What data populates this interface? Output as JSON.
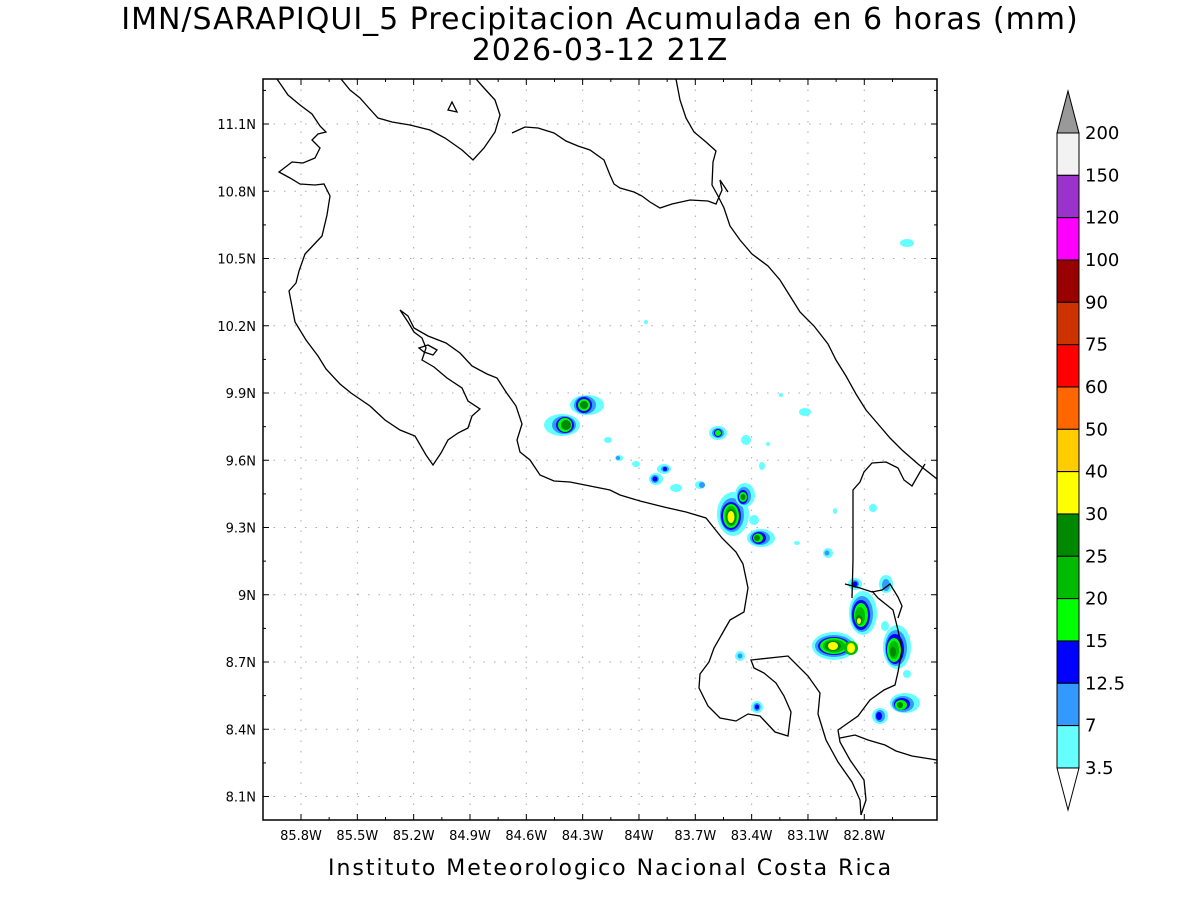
{
  "title": {
    "line1": "IMN/SARAPIQUI_5 Precipitacion Acumulada en 6 horas (mm)",
    "line2": "2026-03-12 21Z"
  },
  "footer": "Instituto Meteorologico Nacional Costa Rica",
  "axes": {
    "lon_labels": [
      "85.8W",
      "85.5W",
      "85.2W",
      "84.9W",
      "84.6W",
      "84.3W",
      "84W",
      "83.7W",
      "83.4W",
      "83.1W",
      "82.8W"
    ],
    "lat_labels": [
      "11.1N",
      "10.8N",
      "10.5N",
      "10.2N",
      "9.9N",
      "9.6N",
      "9.3N",
      "9N",
      "8.7N",
      "8.4N",
      "8.1N"
    ],
    "grid": true
  },
  "colorbar": {
    "levels": [
      "200",
      "150",
      "120",
      "100",
      "90",
      "75",
      "60",
      "50",
      "40",
      "30",
      "25",
      "20",
      "15",
      "12.5",
      "7",
      "3.5"
    ],
    "colors_top_to_bottom": [
      "#f2f2f2",
      "#9933cc",
      "#ff00ff",
      "#990000",
      "#cc3300",
      "#ff0000",
      "#ff6600",
      "#ffcc00",
      "#ffff00",
      "#008800",
      "#00bb00",
      "#00ff00",
      "#0000ff",
      "#3399ff",
      "#66ffff"
    ],
    "over_color": "#999999",
    "under_color": "#ffffff"
  },
  "precip_cells": [
    {
      "lon": -84.42,
      "lat": 9.76,
      "max": "25"
    },
    {
      "lon": -84.33,
      "lat": 9.85,
      "max": "25"
    },
    {
      "lon": -83.63,
      "lat": 9.73,
      "max": "20"
    },
    {
      "lon": -83.9,
      "lat": 9.54,
      "max": "15"
    },
    {
      "lon": -83.53,
      "lat": 9.38,
      "max": "40"
    },
    {
      "lon": -83.48,
      "lat": 9.44,
      "max": "25"
    },
    {
      "lon": -83.43,
      "lat": 9.26,
      "max": "25"
    },
    {
      "lon": -82.88,
      "lat": 8.87,
      "max": "30"
    },
    {
      "lon": -82.93,
      "lat": 8.78,
      "max": "40"
    },
    {
      "lon": -83.03,
      "lat": 8.79,
      "max": "30"
    },
    {
      "lon": -82.73,
      "lat": 8.76,
      "max": "30"
    },
    {
      "lon": -82.76,
      "lat": 8.52,
      "max": "25"
    },
    {
      "lon": -82.81,
      "lat": 8.46,
      "max": "15"
    },
    {
      "lon": -83.43,
      "lat": 8.51,
      "max": "12.5"
    }
  ]
}
